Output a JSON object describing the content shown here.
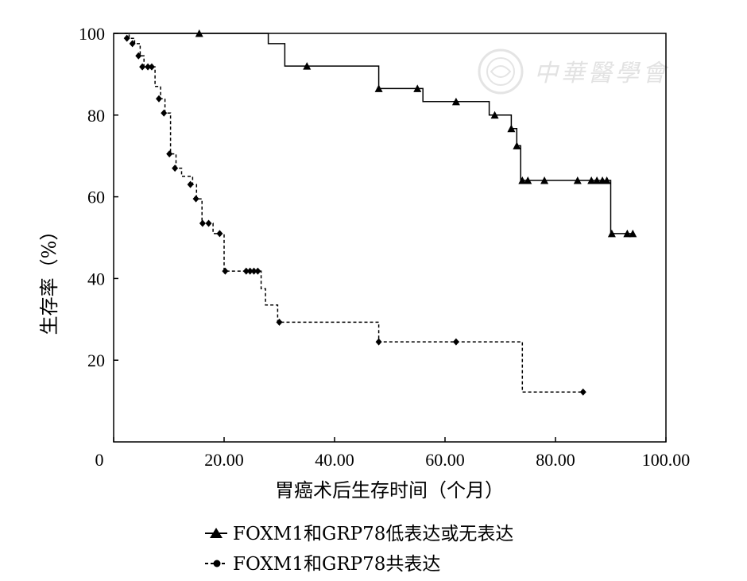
{
  "chart_data": {
    "type": "line",
    "subtype": "kaplan-meier step",
    "xlabel": "胃癌术后生存时间（个月）",
    "ylabel": "生存率（%）",
    "xlim": [
      0,
      100
    ],
    "ylim": [
      0,
      100
    ],
    "x_tick_labels": [
      "0",
      "20.00",
      "40.00",
      "60.00",
      "80.00",
      "100.00"
    ],
    "x_tick_values": [
      0,
      20,
      40,
      60,
      80,
      100
    ],
    "y_tick_labels": [
      "20",
      "40",
      "60",
      "80",
      "100"
    ],
    "y_tick_values": [
      20,
      40,
      60,
      80,
      100
    ],
    "grid": false,
    "legend_position": "bottom",
    "series": [
      {
        "name": "FOXM1和GRP78低表达或无表达",
        "marker": "triangle",
        "line_style": "solid",
        "color": "#000000",
        "steps": [
          [
            0,
            100
          ],
          [
            28,
            100
          ],
          [
            28,
            97.5
          ],
          [
            31,
            97.5
          ],
          [
            31,
            92
          ],
          [
            48,
            92
          ],
          [
            48,
            86.5
          ],
          [
            56,
            86.5
          ],
          [
            56,
            83.3
          ],
          [
            68,
            83.3
          ],
          [
            68,
            80
          ],
          [
            72,
            80
          ],
          [
            72,
            76.7
          ],
          [
            73,
            76.7
          ],
          [
            73,
            72.5
          ],
          [
            73.7,
            72.5
          ],
          [
            73.7,
            64
          ],
          [
            90,
            64
          ],
          [
            90,
            51
          ],
          [
            94,
            51
          ]
        ],
        "censored": [
          [
            15.5,
            100
          ],
          [
            35,
            92
          ],
          [
            48,
            86.5
          ],
          [
            55,
            86.5
          ],
          [
            62,
            83.3
          ],
          [
            69,
            80
          ],
          [
            72,
            76.7
          ],
          [
            73,
            72.5
          ],
          [
            74,
            64
          ],
          [
            75,
            64
          ],
          [
            78,
            64
          ],
          [
            84,
            64
          ],
          [
            86.5,
            64
          ],
          [
            87.5,
            64
          ],
          [
            88.5,
            64
          ],
          [
            89.3,
            64
          ],
          [
            90.2,
            51
          ],
          [
            93,
            51
          ],
          [
            94,
            51
          ]
        ]
      },
      {
        "name": "FOXM1和GRP78共表达",
        "marker": "diamond",
        "line_style": "dashed",
        "color": "#000000",
        "steps": [
          [
            2,
            100
          ],
          [
            2.8,
            100
          ],
          [
            2.8,
            98.8
          ],
          [
            3.8,
            98.8
          ],
          [
            3.8,
            97.5
          ],
          [
            4.8,
            97.5
          ],
          [
            4.8,
            94.5
          ],
          [
            5.5,
            94.5
          ],
          [
            5.5,
            91.8
          ],
          [
            7.5,
            91.8
          ],
          [
            7.5,
            87
          ],
          [
            8.5,
            87
          ],
          [
            8.5,
            84
          ],
          [
            9.3,
            84
          ],
          [
            9.3,
            80.5
          ],
          [
            10.3,
            80.5
          ],
          [
            10.3,
            70.5
          ],
          [
            11.3,
            70.5
          ],
          [
            11.3,
            67
          ],
          [
            12.3,
            67
          ],
          [
            12.3,
            65
          ],
          [
            14.3,
            65
          ],
          [
            14.3,
            63
          ],
          [
            15,
            63
          ],
          [
            15,
            59.5
          ],
          [
            16,
            59.5
          ],
          [
            16,
            53.5
          ],
          [
            18,
            53.5
          ],
          [
            18,
            51
          ],
          [
            20,
            51
          ],
          [
            20,
            41.8
          ],
          [
            26.7,
            41.8
          ],
          [
            26.7,
            37.5
          ],
          [
            27.5,
            37.5
          ],
          [
            27.5,
            33.5
          ],
          [
            29.7,
            33.5
          ],
          [
            29.7,
            29.3
          ],
          [
            48,
            29.3
          ],
          [
            48,
            24.5
          ],
          [
            74,
            24.5
          ],
          [
            74,
            12.2
          ],
          [
            85,
            12.2
          ]
        ],
        "censored": [
          [
            2.4,
            98.8
          ],
          [
            3.4,
            97.5
          ],
          [
            4.5,
            94.5
          ],
          [
            5.2,
            91.8
          ],
          [
            6.2,
            91.8
          ],
          [
            6.9,
            91.8
          ],
          [
            8.2,
            84
          ],
          [
            9.1,
            80.5
          ],
          [
            10.1,
            70.5
          ],
          [
            11.1,
            67
          ],
          [
            13.9,
            63
          ],
          [
            14.9,
            59.5
          ],
          [
            16.1,
            53.5
          ],
          [
            17.2,
            53.5
          ],
          [
            19.2,
            51
          ],
          [
            20.2,
            41.8
          ],
          [
            24,
            41.8
          ],
          [
            24.7,
            41.8
          ],
          [
            25.4,
            41.8
          ],
          [
            26.1,
            41.8
          ],
          [
            30,
            29.3
          ],
          [
            48,
            24.5
          ],
          [
            62,
            24.5
          ],
          [
            85,
            12.2
          ]
        ]
      }
    ]
  },
  "watermark": {
    "text": "中華醫學會"
  }
}
